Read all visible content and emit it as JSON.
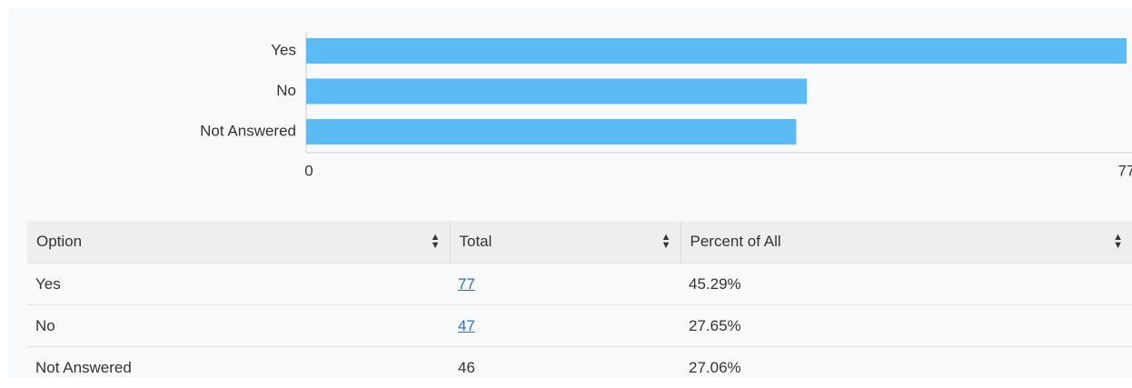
{
  "chart_data": {
    "type": "bar",
    "orientation": "horizontal",
    "categories": [
      "Yes",
      "No",
      "Not Answered"
    ],
    "values": [
      77,
      47,
      46
    ],
    "color": "#5bbcf5",
    "xlim": [
      0,
      77
    ],
    "xticks": [
      0,
      77
    ],
    "grid": false
  },
  "table": {
    "columns": [
      "Option",
      "Total",
      "Percent of All"
    ],
    "rows": [
      [
        "Yes",
        "77",
        "45.29%"
      ],
      [
        "No",
        "47",
        "27.65%"
      ],
      [
        "Not Answered",
        "46",
        "27.06%"
      ]
    ]
  }
}
